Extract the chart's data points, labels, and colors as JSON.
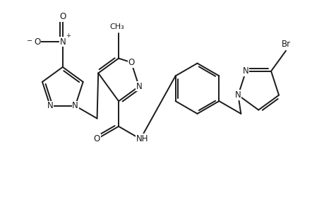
{
  "bg_color": "#ffffff",
  "line_color": "#1a1a1a",
  "line_width": 1.4,
  "font_size": 8.5,
  "fig_width": 4.6,
  "fig_height": 3.0,
  "dpi": 100,
  "xlim": [
    0,
    9.2
  ],
  "ylim": [
    0,
    6.0
  ]
}
